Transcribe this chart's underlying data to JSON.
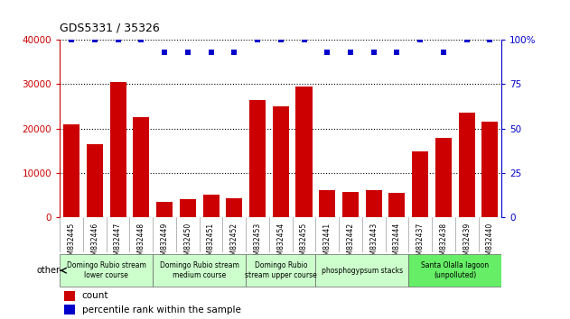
{
  "title": "GDS5331 / 35326",
  "samples": [
    "GSM832445",
    "GSM832446",
    "GSM832447",
    "GSM832448",
    "GSM832449",
    "GSM832450",
    "GSM832451",
    "GSM832452",
    "GSM832453",
    "GSM832454",
    "GSM832455",
    "GSM832441",
    "GSM832442",
    "GSM832443",
    "GSM832444",
    "GSM832437",
    "GSM832438",
    "GSM832439",
    "GSM832440"
  ],
  "counts": [
    21000,
    16500,
    30500,
    22500,
    3500,
    4000,
    5000,
    4200,
    26500,
    25000,
    29500,
    6200,
    5800,
    6200,
    5600,
    14800,
    18000,
    23500,
    21500
  ],
  "percentiles": [
    100,
    100,
    100,
    100,
    93,
    93,
    93,
    93,
    100,
    100,
    100,
    93,
    93,
    93,
    93,
    100,
    93,
    100,
    100
  ],
  "bar_color": "#cc0000",
  "dot_color": "#0000cc",
  "ylim_left": [
    0,
    40000
  ],
  "ylim_right": [
    0,
    100
  ],
  "yticks_left": [
    0,
    10000,
    20000,
    30000,
    40000
  ],
  "yticks_right": [
    0,
    25,
    50,
    75,
    100
  ],
  "groups": [
    {
      "label": "Domingo Rubio stream\nlower course",
      "start": 0,
      "end": 4,
      "color": "#ccffcc"
    },
    {
      "label": "Domingo Rubio stream\nmedium course",
      "start": 4,
      "end": 8,
      "color": "#ccffcc"
    },
    {
      "label": "Domingo Rubio\nstream upper course",
      "start": 8,
      "end": 11,
      "color": "#ccffcc"
    },
    {
      "label": "phosphogypsum stacks",
      "start": 11,
      "end": 15,
      "color": "#ccffcc"
    },
    {
      "label": "Santa Olalla lagoon\n(unpolluted)",
      "start": 15,
      "end": 19,
      "color": "#66ee66"
    }
  ],
  "other_label": "other",
  "legend_count_label": "count",
  "legend_percentile_label": "percentile rank within the sample",
  "background_color": "#ffffff",
  "tick_area_color": "#cccccc",
  "group_border_color": "#666666"
}
